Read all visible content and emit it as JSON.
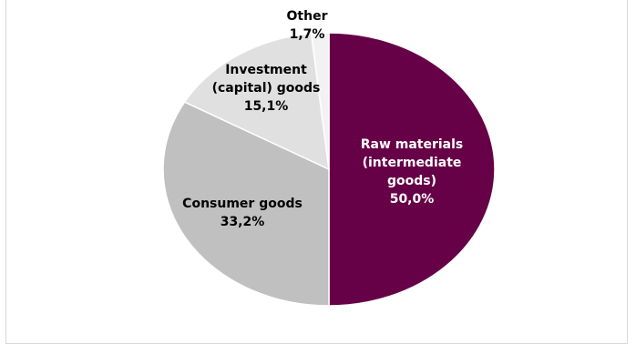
{
  "chart_data": {
    "type": "pie",
    "title": "",
    "slices": [
      {
        "label_lines": [
          "Raw materials",
          "(intermediate",
          "goods)"
        ],
        "value": 50.0,
        "value_label": "50,0%",
        "color": "#660047",
        "text_color": "#ffffff"
      },
      {
        "label_lines": [
          "Consumer goods"
        ],
        "value": 33.2,
        "value_label": "33,2%",
        "color": "#c0c0c0",
        "text_color": "#000000"
      },
      {
        "label_lines": [
          "Investment",
          "(capital) goods"
        ],
        "value": 15.1,
        "value_label": "15,1%",
        "color": "#e0e0e0",
        "text_color": "#000000"
      },
      {
        "label_lines": [
          "Other"
        ],
        "value": 1.7,
        "value_label": "1,7%",
        "color": "#f2f2f2",
        "text_color": "#000000"
      }
    ],
    "legend": "none"
  }
}
